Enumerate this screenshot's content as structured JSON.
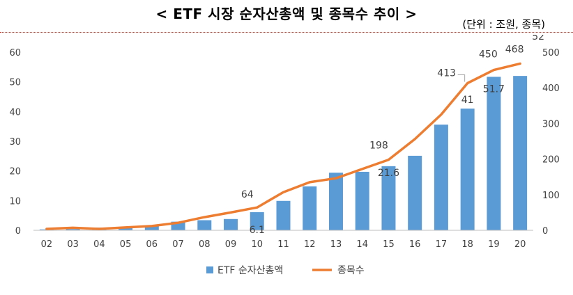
{
  "header": {
    "title": "< ETF 시장 순자산총액 및 종목수 추이 >",
    "unit": "(단위 : 조원, 종목)"
  },
  "chart_data": {
    "type": "bar",
    "title": "< ETF 시장 순자산총액 및 종목수 추이 >",
    "categories": [
      "02",
      "03",
      "04",
      "05",
      "06",
      "07",
      "08",
      "09",
      "10",
      "11",
      "12",
      "13",
      "14",
      "15",
      "16",
      "17",
      "18",
      "19",
      "20"
    ],
    "series": [
      {
        "name": "ETF 순자산총액",
        "type": "bar",
        "axis": "left",
        "color": "#5b9bd5",
        "values": [
          0.3,
          0.4,
          0.9,
          1.0,
          1.5,
          2.9,
          3.4,
          3.8,
          6.1,
          9.9,
          14.8,
          19.4,
          19.7,
          21.6,
          25.1,
          35.6,
          41.0,
          51.7,
          52.0
        ]
      },
      {
        "name": "종목수",
        "type": "line",
        "axis": "right",
        "color": "#ed7d31",
        "values": [
          4,
          7,
          4,
          8,
          12,
          21,
          37,
          50,
          64,
          107,
          135,
          146,
          172,
          198,
          256,
          325,
          413,
          450,
          468
        ]
      }
    ],
    "left_axis": {
      "ylim": [
        0,
        60
      ],
      "ticks": [
        0,
        10,
        20,
        30,
        40,
        50,
        60
      ]
    },
    "right_axis": {
      "ylim": [
        0,
        500
      ],
      "ticks": [
        0,
        100,
        200,
        300,
        400,
        500
      ]
    },
    "labels": {
      "bar": [
        {
          "category": "10",
          "text": "6.1"
        },
        {
          "category": "15",
          "text": "21.6"
        },
        {
          "category": "18",
          "text": "41"
        },
        {
          "category": "19",
          "text": "51.7"
        },
        {
          "category": "20",
          "text": "52"
        }
      ],
      "line": [
        {
          "category": "10",
          "text": "64"
        },
        {
          "category": "15",
          "text": "198"
        },
        {
          "category": "18",
          "text": "413"
        },
        {
          "category": "19",
          "text": "450"
        },
        {
          "category": "20",
          "text": "468"
        }
      ]
    },
    "legend": {
      "placement": "bottom"
    },
    "grid": false
  }
}
